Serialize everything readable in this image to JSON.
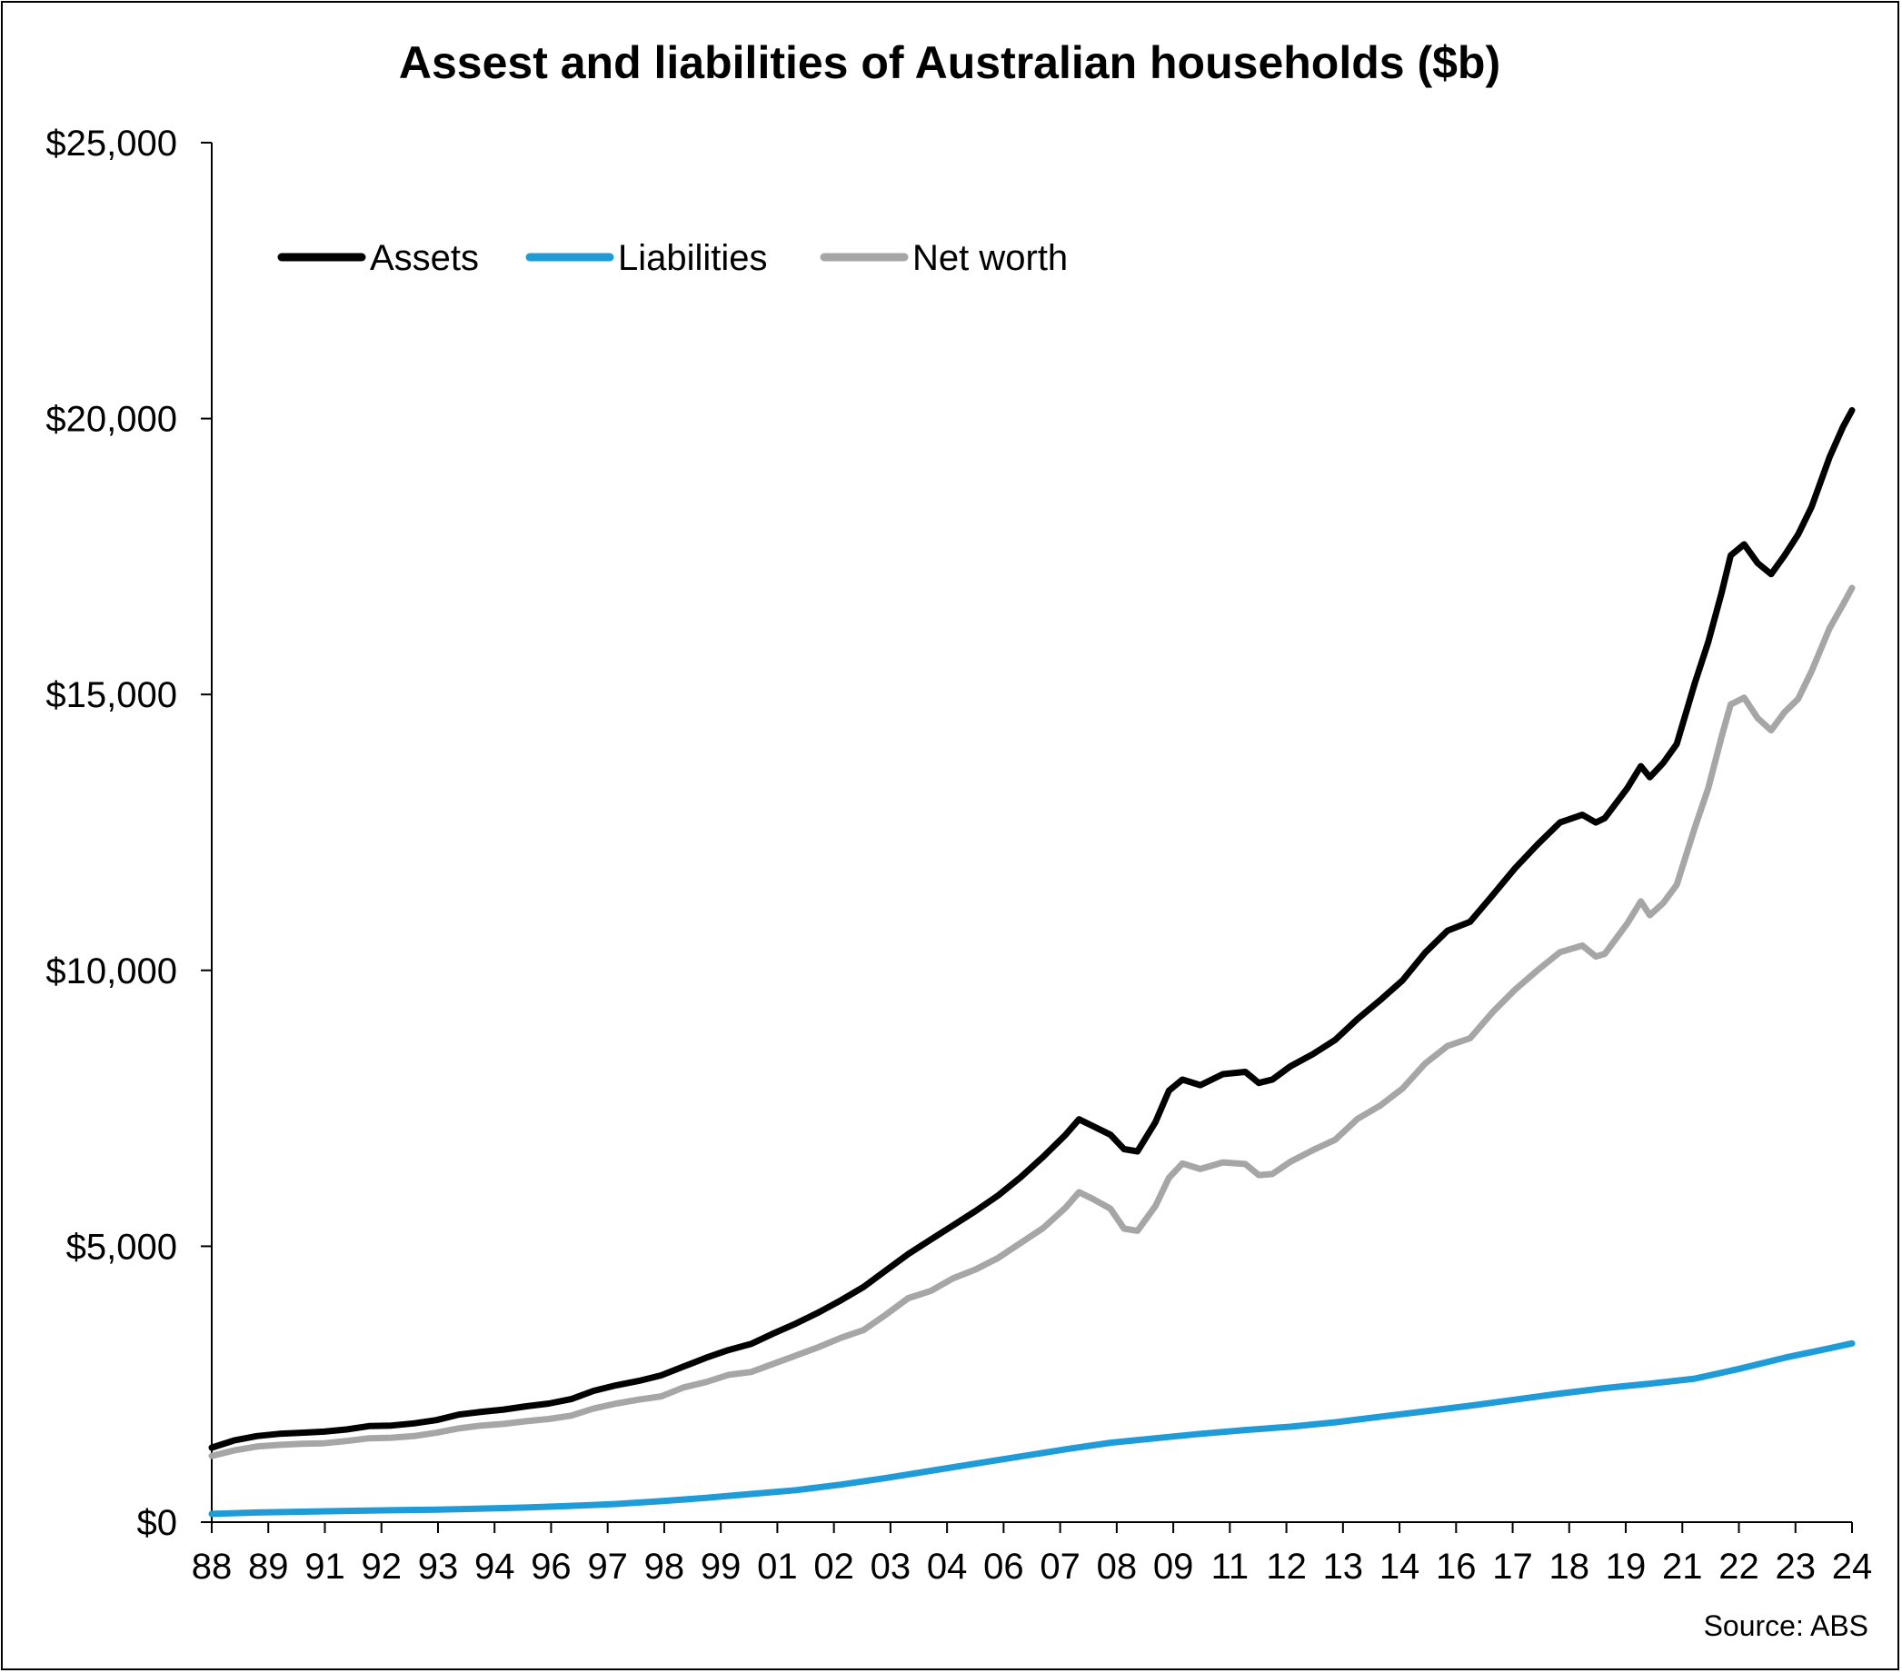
{
  "chart_data": {
    "type": "line",
    "title": "Assest and liabilities of Australian households ($b)",
    "source": "Source: ABS",
    "xlabel": "",
    "ylabel": "",
    "ylim": [
      0,
      25000
    ],
    "y_ticks": [
      0,
      5000,
      10000,
      15000,
      20000,
      25000
    ],
    "y_tick_labels": [
      "$0",
      "$5,000",
      "$10,000",
      "$15,000",
      "$20,000",
      "$25,000"
    ],
    "x_tick_labels": [
      "88",
      "89",
      "91",
      "92",
      "93",
      "94",
      "96",
      "97",
      "98",
      "99",
      "01",
      "02",
      "03",
      "04",
      "06",
      "07",
      "08",
      "09",
      "11",
      "12",
      "13",
      "14",
      "16",
      "17",
      "18",
      "19",
      "21",
      "22",
      "23",
      "24"
    ],
    "x_range": [
      1988.0,
      2024.5
    ],
    "grid": false,
    "legend_position": "top-left",
    "series": [
      {
        "name": "Assets",
        "color": "#000000",
        "points": [
          [
            1988.0,
            1350
          ],
          [
            1988.5,
            1480
          ],
          [
            1989.0,
            1560
          ],
          [
            1989.5,
            1600
          ],
          [
            1990.0,
            1620
          ],
          [
            1990.5,
            1640
          ],
          [
            1991.0,
            1680
          ],
          [
            1991.5,
            1740
          ],
          [
            1992.0,
            1750
          ],
          [
            1992.5,
            1790
          ],
          [
            1993.0,
            1850
          ],
          [
            1993.5,
            1950
          ],
          [
            1994.0,
            2000
          ],
          [
            1994.5,
            2040
          ],
          [
            1995.0,
            2100
          ],
          [
            1995.5,
            2150
          ],
          [
            1996.0,
            2230
          ],
          [
            1996.5,
            2380
          ],
          [
            1997.0,
            2480
          ],
          [
            1997.5,
            2560
          ],
          [
            1998.0,
            2660
          ],
          [
            1998.5,
            2820
          ],
          [
            1999.0,
            2980
          ],
          [
            1999.5,
            3120
          ],
          [
            2000.0,
            3230
          ],
          [
            2000.5,
            3420
          ],
          [
            2001.0,
            3600
          ],
          [
            2001.5,
            3800
          ],
          [
            2002.0,
            4020
          ],
          [
            2002.5,
            4260
          ],
          [
            2003.0,
            4560
          ],
          [
            2003.5,
            4860
          ],
          [
            2004.0,
            5120
          ],
          [
            2004.5,
            5380
          ],
          [
            2005.0,
            5640
          ],
          [
            2005.5,
            5920
          ],
          [
            2006.0,
            6250
          ],
          [
            2006.5,
            6620
          ],
          [
            2007.0,
            7020
          ],
          [
            2007.3,
            7300
          ],
          [
            2007.6,
            7180
          ],
          [
            2008.0,
            7020
          ],
          [
            2008.3,
            6760
          ],
          [
            2008.6,
            6720
          ],
          [
            2009.0,
            7250
          ],
          [
            2009.3,
            7820
          ],
          [
            2009.6,
            8020
          ],
          [
            2010.0,
            7920
          ],
          [
            2010.5,
            8120
          ],
          [
            2011.0,
            8160
          ],
          [
            2011.3,
            7960
          ],
          [
            2011.6,
            8020
          ],
          [
            2012.0,
            8260
          ],
          [
            2012.5,
            8480
          ],
          [
            2013.0,
            8740
          ],
          [
            2013.5,
            9120
          ],
          [
            2014.0,
            9460
          ],
          [
            2014.5,
            9820
          ],
          [
            2015.0,
            10320
          ],
          [
            2015.5,
            10720
          ],
          [
            2016.0,
            10880
          ],
          [
            2016.5,
            11360
          ],
          [
            2017.0,
            11850
          ],
          [
            2017.5,
            12280
          ],
          [
            2018.0,
            12680
          ],
          [
            2018.5,
            12820
          ],
          [
            2018.8,
            12680
          ],
          [
            2019.0,
            12760
          ],
          [
            2019.5,
            13300
          ],
          [
            2019.8,
            13700
          ],
          [
            2020.0,
            13500
          ],
          [
            2020.3,
            13760
          ],
          [
            2020.6,
            14100
          ],
          [
            2021.0,
            15200
          ],
          [
            2021.3,
            15950
          ],
          [
            2021.6,
            16850
          ],
          [
            2021.8,
            17520
          ],
          [
            2022.1,
            17720
          ],
          [
            2022.4,
            17380
          ],
          [
            2022.7,
            17180
          ],
          [
            2023.0,
            17520
          ],
          [
            2023.3,
            17900
          ],
          [
            2023.6,
            18400
          ],
          [
            2024.0,
            19300
          ],
          [
            2024.3,
            19850
          ],
          [
            2024.5,
            20150
          ]
        ]
      },
      {
        "name": "Liabilities",
        "color": "#1f9bd7",
        "points": [
          [
            1988.0,
            150
          ],
          [
            1989.0,
            175
          ],
          [
            1990.0,
            190
          ],
          [
            1991.0,
            205
          ],
          [
            1992.0,
            215
          ],
          [
            1993.0,
            225
          ],
          [
            1994.0,
            245
          ],
          [
            1995.0,
            265
          ],
          [
            1996.0,
            295
          ],
          [
            1997.0,
            330
          ],
          [
            1998.0,
            380
          ],
          [
            1999.0,
            440
          ],
          [
            2000.0,
            510
          ],
          [
            2001.0,
            580
          ],
          [
            2002.0,
            680
          ],
          [
            2003.0,
            800
          ],
          [
            2004.0,
            930
          ],
          [
            2005.0,
            1060
          ],
          [
            2006.0,
            1190
          ],
          [
            2007.0,
            1320
          ],
          [
            2008.0,
            1440
          ],
          [
            2009.0,
            1520
          ],
          [
            2010.0,
            1600
          ],
          [
            2011.0,
            1670
          ],
          [
            2012.0,
            1730
          ],
          [
            2013.0,
            1810
          ],
          [
            2014.0,
            1910
          ],
          [
            2015.0,
            2010
          ],
          [
            2016.0,
            2110
          ],
          [
            2017.0,
            2220
          ],
          [
            2018.0,
            2330
          ],
          [
            2019.0,
            2430
          ],
          [
            2020.0,
            2510
          ],
          [
            2021.0,
            2600
          ],
          [
            2022.0,
            2780
          ],
          [
            2023.0,
            2980
          ],
          [
            2024.0,
            3150
          ],
          [
            2024.5,
            3240
          ]
        ]
      },
      {
        "name": "Net worth",
        "color": "#a6a6a6",
        "points": [
          [
            1988.0,
            1200
          ],
          [
            1988.5,
            1300
          ],
          [
            1989.0,
            1370
          ],
          [
            1989.5,
            1400
          ],
          [
            1990.0,
            1420
          ],
          [
            1990.5,
            1430
          ],
          [
            1991.0,
            1470
          ],
          [
            1991.5,
            1520
          ],
          [
            1992.0,
            1530
          ],
          [
            1992.5,
            1560
          ],
          [
            1993.0,
            1620
          ],
          [
            1993.5,
            1700
          ],
          [
            1994.0,
            1750
          ],
          [
            1994.5,
            1780
          ],
          [
            1995.0,
            1830
          ],
          [
            1995.5,
            1870
          ],
          [
            1996.0,
            1930
          ],
          [
            1996.5,
            2060
          ],
          [
            1997.0,
            2150
          ],
          [
            1997.5,
            2220
          ],
          [
            1998.0,
            2280
          ],
          [
            1998.5,
            2440
          ],
          [
            1999.0,
            2540
          ],
          [
            1999.5,
            2670
          ],
          [
            2000.0,
            2720
          ],
          [
            2000.5,
            2870
          ],
          [
            2001.0,
            3020
          ],
          [
            2001.5,
            3170
          ],
          [
            2002.0,
            3340
          ],
          [
            2002.5,
            3480
          ],
          [
            2003.0,
            3760
          ],
          [
            2003.5,
            4060
          ],
          [
            2004.0,
            4190
          ],
          [
            2004.5,
            4420
          ],
          [
            2005.0,
            4580
          ],
          [
            2005.5,
            4790
          ],
          [
            2006.0,
            5060
          ],
          [
            2006.5,
            5330
          ],
          [
            2007.0,
            5700
          ],
          [
            2007.3,
            5980
          ],
          [
            2007.6,
            5860
          ],
          [
            2008.0,
            5680
          ],
          [
            2008.3,
            5320
          ],
          [
            2008.6,
            5280
          ],
          [
            2009.0,
            5730
          ],
          [
            2009.3,
            6240
          ],
          [
            2009.6,
            6500
          ],
          [
            2010.0,
            6400
          ],
          [
            2010.5,
            6520
          ],
          [
            2011.0,
            6490
          ],
          [
            2011.3,
            6290
          ],
          [
            2011.6,
            6310
          ],
          [
            2012.0,
            6530
          ],
          [
            2012.5,
            6740
          ],
          [
            2013.0,
            6930
          ],
          [
            2013.5,
            7310
          ],
          [
            2014.0,
            7550
          ],
          [
            2014.5,
            7860
          ],
          [
            2015.0,
            8310
          ],
          [
            2015.5,
            8630
          ],
          [
            2016.0,
            8770
          ],
          [
            2016.5,
            9240
          ],
          [
            2017.0,
            9650
          ],
          [
            2017.5,
            10000
          ],
          [
            2018.0,
            10330
          ],
          [
            2018.5,
            10450
          ],
          [
            2018.8,
            10250
          ],
          [
            2019.0,
            10300
          ],
          [
            2019.5,
            10850
          ],
          [
            2019.8,
            11250
          ],
          [
            2020.0,
            11000
          ],
          [
            2020.3,
            11220
          ],
          [
            2020.6,
            11550
          ],
          [
            2021.0,
            12580
          ],
          [
            2021.3,
            13300
          ],
          [
            2021.6,
            14240
          ],
          [
            2021.8,
            14820
          ],
          [
            2022.1,
            14940
          ],
          [
            2022.4,
            14570
          ],
          [
            2022.7,
            14350
          ],
          [
            2023.0,
            14680
          ],
          [
            2023.3,
            14920
          ],
          [
            2023.6,
            15420
          ],
          [
            2024.0,
            16200
          ],
          [
            2024.3,
            16630
          ],
          [
            2024.5,
            16930
          ]
        ]
      }
    ]
  }
}
